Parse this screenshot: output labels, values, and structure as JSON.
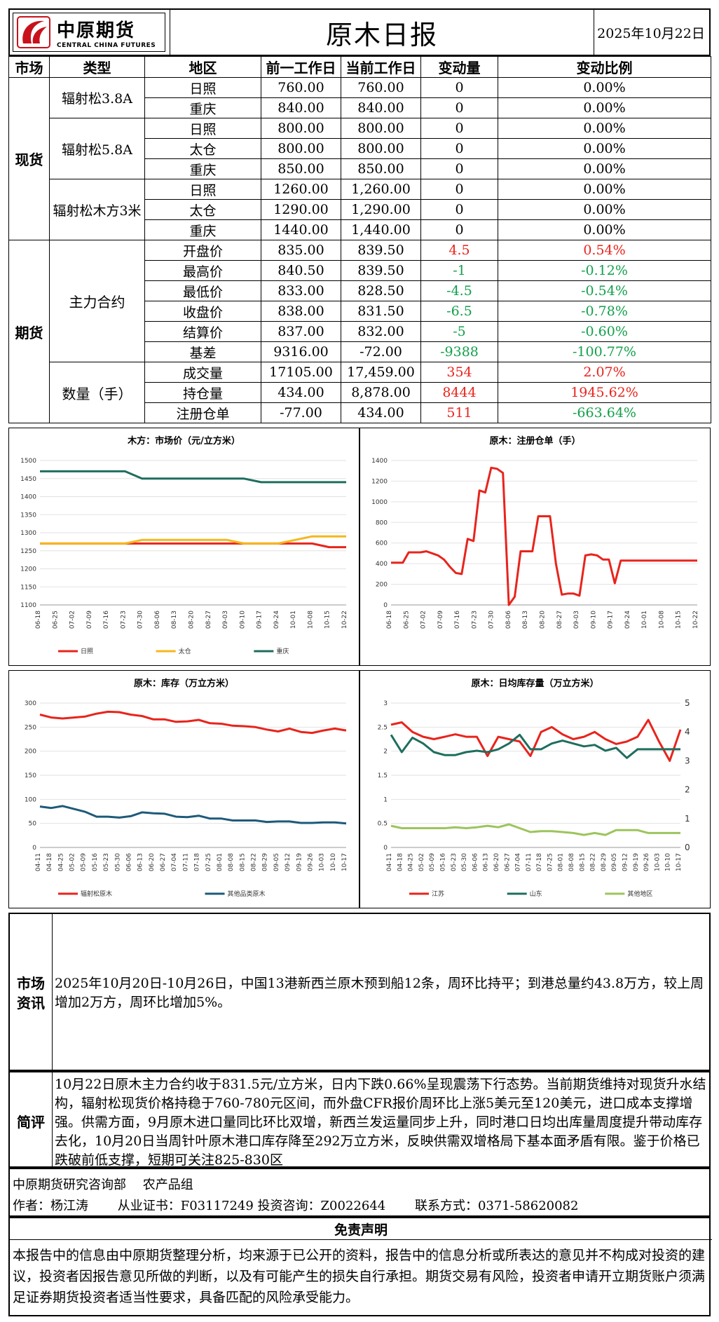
{
  "header": {
    "company_cn": "中原期货",
    "company_en": "CENTRAL CHINA FUTURES",
    "title": "原木日报",
    "date": "2025年10月22日"
  },
  "table": {
    "headers": [
      "市场",
      "类型",
      "地区",
      "前一工作日",
      "当前工作日",
      "变动量",
      "变动比例"
    ],
    "markets": {
      "spot": "现货",
      "futures": "期货"
    },
    "groups": [
      "辐射松3.8A",
      "辐射松5.8A",
      "辐射松木方3米",
      "主力合约",
      "数量（手）"
    ],
    "rows": [
      {
        "region": "日照",
        "prev": "760.00",
        "curr": "760.00",
        "chg": "0",
        "pct": "0.00%",
        "color": "#000000"
      },
      {
        "region": "重庆",
        "prev": "840.00",
        "curr": "840.00",
        "chg": "0",
        "pct": "0.00%",
        "color": "#000000"
      },
      {
        "region": "日照",
        "prev": "800.00",
        "curr": "800.00",
        "chg": "0",
        "pct": "0.00%",
        "color": "#000000"
      },
      {
        "region": "太仓",
        "prev": "800.00",
        "curr": "800.00",
        "chg": "0",
        "pct": "0.00%",
        "color": "#000000"
      },
      {
        "region": "重庆",
        "prev": "850.00",
        "curr": "850.00",
        "chg": "0",
        "pct": "0.00%",
        "color": "#000000"
      },
      {
        "region": "日照",
        "prev": "1260.00",
        "curr": "1,260.00",
        "chg": "0",
        "pct": "0.00%",
        "color": "#000000"
      },
      {
        "region": "太仓",
        "prev": "1290.00",
        "curr": "1,290.00",
        "chg": "0",
        "pct": "0.00%",
        "color": "#000000"
      },
      {
        "region": "重庆",
        "prev": "1440.00",
        "curr": "1,440.00",
        "chg": "0",
        "pct": "0.00%",
        "color": "#000000"
      },
      {
        "region": "开盘价",
        "prev": "835.00",
        "curr": "839.50",
        "chg": "4.5",
        "pct": "0.54%",
        "color": "#e8241c"
      },
      {
        "region": "最高价",
        "prev": "840.50",
        "curr": "839.50",
        "chg": "-1",
        "pct": "-0.12%",
        "color": "#12a04a"
      },
      {
        "region": "最低价",
        "prev": "833.00",
        "curr": "828.50",
        "chg": "-4.5",
        "pct": "-0.54%",
        "color": "#12a04a"
      },
      {
        "region": "收盘价",
        "prev": "838.00",
        "curr": "831.50",
        "chg": "-6.5",
        "pct": "-0.78%",
        "color": "#12a04a"
      },
      {
        "region": "结算价",
        "prev": "837.00",
        "curr": "832.00",
        "chg": "-5",
        "pct": "-0.60%",
        "color": "#12a04a"
      },
      {
        "region": "基差",
        "prev": "9316.00",
        "curr": "-72.00",
        "chg": "-9388",
        "pct": "-100.77%",
        "color": "#12a04a"
      },
      {
        "region": "成交量",
        "prev": "17105.00",
        "curr": "17,459.00",
        "chg": "354",
        "pct": "2.07%",
        "color": "#e8241c"
      },
      {
        "region": "持仓量",
        "prev": "434.00",
        "curr": "8,878.00",
        "chg": "8444",
        "pct": "1945.62%",
        "color": "#e8241c"
      },
      {
        "region": "注册仓单",
        "prev": "-77.00",
        "curr": "434.00",
        "chg": "511",
        "pct": "-663.64%",
        "color": "#e8241c",
        "pct_color": "#12a04a"
      }
    ]
  },
  "chart_data": [
    {
      "type": "line",
      "title": "木方：市场价（元/立方米）",
      "ylim": [
        1100,
        1500
      ],
      "yticks": [
        1100,
        1150,
        1200,
        1250,
        1300,
        1350,
        1400,
        1450,
        1500
      ],
      "xticks": [
        "06-18",
        "06-25",
        "07-02",
        "07-09",
        "07-16",
        "07-23",
        "07-30",
        "08-06",
        "08-13",
        "08-20",
        "08-27",
        "09-03",
        "09-10",
        "09-17",
        "09-24",
        "10-01",
        "10-08",
        "10-15",
        "10-22"
      ],
      "series": [
        {
          "name": "日照",
          "color": "#e8241c",
          "values": [
            1270,
            1270,
            1270,
            1270,
            1270,
            1270,
            1270,
            1270,
            1270,
            1270,
            1270,
            1270,
            1270,
            1270,
            1270,
            1270,
            1270,
            1260,
            1260
          ]
        },
        {
          "name": "太仓",
          "color": "#f4b81c",
          "values": [
            1270,
            1270,
            1270,
            1270,
            1270,
            1270,
            1280,
            1280,
            1280,
            1280,
            1280,
            1280,
            1270,
            1270,
            1270,
            1280,
            1290,
            1290,
            1290
          ]
        },
        {
          "name": "重庆",
          "color": "#1e6e5e",
          "values": [
            1470,
            1470,
            1470,
            1470,
            1470,
            1470,
            1450,
            1450,
            1450,
            1450,
            1450,
            1450,
            1450,
            1440,
            1440,
            1440,
            1440,
            1440,
            1440
          ]
        }
      ]
    },
    {
      "type": "line",
      "title": "原木：注册仓单（手）",
      "ylim": [
        0,
        1400
      ],
      "yticks": [
        0,
        200,
        400,
        600,
        800,
        1000,
        1200,
        1400
      ],
      "xticks": [
        "06-18",
        "06-25",
        "07-02",
        "07-09",
        "07-16",
        "07-23",
        "07-30",
        "08-06",
        "08-13",
        "08-20",
        "08-27",
        "09-03",
        "09-10",
        "09-17",
        "09-24",
        "10-01",
        "10-08",
        "10-15",
        "10-22"
      ],
      "series": [
        {
          "name": "注册仓单",
          "color": "#e8241c",
          "values": [
            410,
            410,
            410,
            510,
            510,
            510,
            520,
            500,
            480,
            440,
            370,
            310,
            300,
            640,
            620,
            1110,
            1090,
            1330,
            1320,
            1280,
            0,
            80,
            520,
            520,
            520,
            860,
            860,
            860,
            400,
            100,
            110,
            110,
            90,
            480,
            490,
            480,
            440,
            440,
            210,
            430,
            430,
            430,
            430,
            430,
            430,
            430,
            430,
            430,
            430,
            430,
            430,
            430,
            430
          ]
        }
      ]
    },
    {
      "type": "line",
      "title": "原木：库存（万立方米）",
      "ylim": [
        0,
        300
      ],
      "yticks": [
        0,
        50,
        100,
        150,
        200,
        250,
        300
      ],
      "xticks": [
        "04-11",
        "04-18",
        "04-25",
        "05-02",
        "05-09",
        "05-16",
        "05-23",
        "05-30",
        "06-06",
        "06-13",
        "06-20",
        "06-27",
        "07-04",
        "07-11",
        "07-18",
        "07-25",
        "08-01",
        "08-08",
        "08-15",
        "08-22",
        "08-29",
        "09-05",
        "09-12",
        "09-19",
        "09-26",
        "10-03",
        "10-10",
        "10-17"
      ],
      "series": [
        {
          "name": "辐射松原木",
          "color": "#e8241c",
          "values": [
            276,
            270,
            268,
            270,
            272,
            278,
            282,
            281,
            276,
            273,
            266,
            266,
            261,
            262,
            265,
            258,
            257,
            253,
            252,
            250,
            245,
            241,
            247,
            240,
            238,
            243,
            247,
            243
          ]
        },
        {
          "name": "其他品类原木",
          "color": "#1e5a7a",
          "values": [
            85,
            82,
            86,
            80,
            74,
            64,
            64,
            62,
            65,
            73,
            71,
            70,
            64,
            63,
            66,
            60,
            60,
            56,
            56,
            56,
            53,
            54,
            54,
            51,
            51,
            52,
            52,
            50
          ]
        }
      ]
    },
    {
      "type": "line",
      "title": "原木：日均库存量（万立方米）",
      "ylim": [
        0,
        3
      ],
      "y2lim": [
        0,
        5
      ],
      "yticks": [
        0,
        0.5,
        1,
        1.5,
        2,
        2.5,
        3
      ],
      "y2ticks": [
        0,
        1,
        2,
        3,
        4,
        5
      ],
      "xticks": [
        "04-11",
        "04-18",
        "04-25",
        "05-02",
        "05-09",
        "05-16",
        "05-23",
        "05-30",
        "06-06",
        "06-13",
        "06-20",
        "06-27",
        "07-04",
        "07-11",
        "07-18",
        "07-25",
        "08-01",
        "08-08",
        "08-15",
        "08-22",
        "08-29",
        "09-05",
        "09-12",
        "09-19",
        "09-26",
        "10-03",
        "10-10",
        "10-17"
      ],
      "series": [
        {
          "name": "江苏",
          "color": "#e8241c",
          "axis": "left",
          "values": [
            2.55,
            2.6,
            2.4,
            2.3,
            2.25,
            2.3,
            2.35,
            2.3,
            2.3,
            1.9,
            2.3,
            2.25,
            2.2,
            1.9,
            2.4,
            2.5,
            2.35,
            2.25,
            2.3,
            2.4,
            2.25,
            2.15,
            2.2,
            2.3,
            2.65,
            2.2,
            1.8,
            2.45
          ]
        },
        {
          "name": "山东",
          "color": "#1e6e5e",
          "axis": "right",
          "values": [
            3.9,
            3.3,
            3.8,
            3.6,
            3.3,
            3.2,
            3.2,
            3.3,
            3.35,
            3.3,
            3.4,
            3.6,
            3.9,
            3.4,
            3.4,
            3.6,
            3.7,
            3.6,
            3.5,
            3.55,
            3.35,
            3.45,
            3.1,
            3.4,
            3.4,
            3.4,
            3.4,
            3.4
          ]
        },
        {
          "name": "其他地区",
          "color": "#9cc45c",
          "axis": "left",
          "values": [
            0.45,
            0.4,
            0.4,
            0.4,
            0.4,
            0.4,
            0.42,
            0.4,
            0.42,
            0.45,
            0.42,
            0.48,
            0.4,
            0.32,
            0.34,
            0.34,
            0.32,
            0.3,
            0.26,
            0.3,
            0.26,
            0.36,
            0.36,
            0.36,
            0.3,
            0.3,
            0.3,
            0.3
          ]
        }
      ]
    }
  ],
  "market_info": {
    "label": "市场资讯",
    "text": "2025年10月20日-10月26日，中国13港新西兰原木预到船12条，周环比持平；到港总量约43.8万方，较上周增加2万方，周环比增加5%。"
  },
  "review": {
    "label": "简评",
    "text": "10月22日原木主力合约收于831.5元/立方米，日内下跌0.66%呈现震荡下行态势。当前期货维持对现货升水结构，辐射松现货价格持稳于760-780元区间，而外盘CFR报价周环比上涨5美元至120美元，进口成本支撑增强。供需方面，9月原木进口量同比环比双增，新西兰发运量同步上升，同时港口日均出库量周度提升带动库存去化，10月20日当周针叶原木港口库存降至292万立方米，反映供需双增格局下基本面矛盾有限。鉴于价格已跌破前低支撑，短期可关注825-830区"
  },
  "author": {
    "dept": "中原期货研究咨询部　 农产品组",
    "line": "作者：杨江涛　　 从业证书：F03117249 投资咨询：Z0022644　　 联系方式：0371-58620082"
  },
  "disclaimer": {
    "title": "免责声明",
    "text": "本报告中的信息由中原期货整理分析，均来源于已公开的资料，报告中的信息分析或所表达的意见并不构成对投资的建议，投资者因报告意见所做的判断，以及有可能产生的损失自行承担。期货交易有风险，投资者申请开立期货账户须满足证券期货投资者适当性要求，具备匹配的风险承受能力。"
  }
}
